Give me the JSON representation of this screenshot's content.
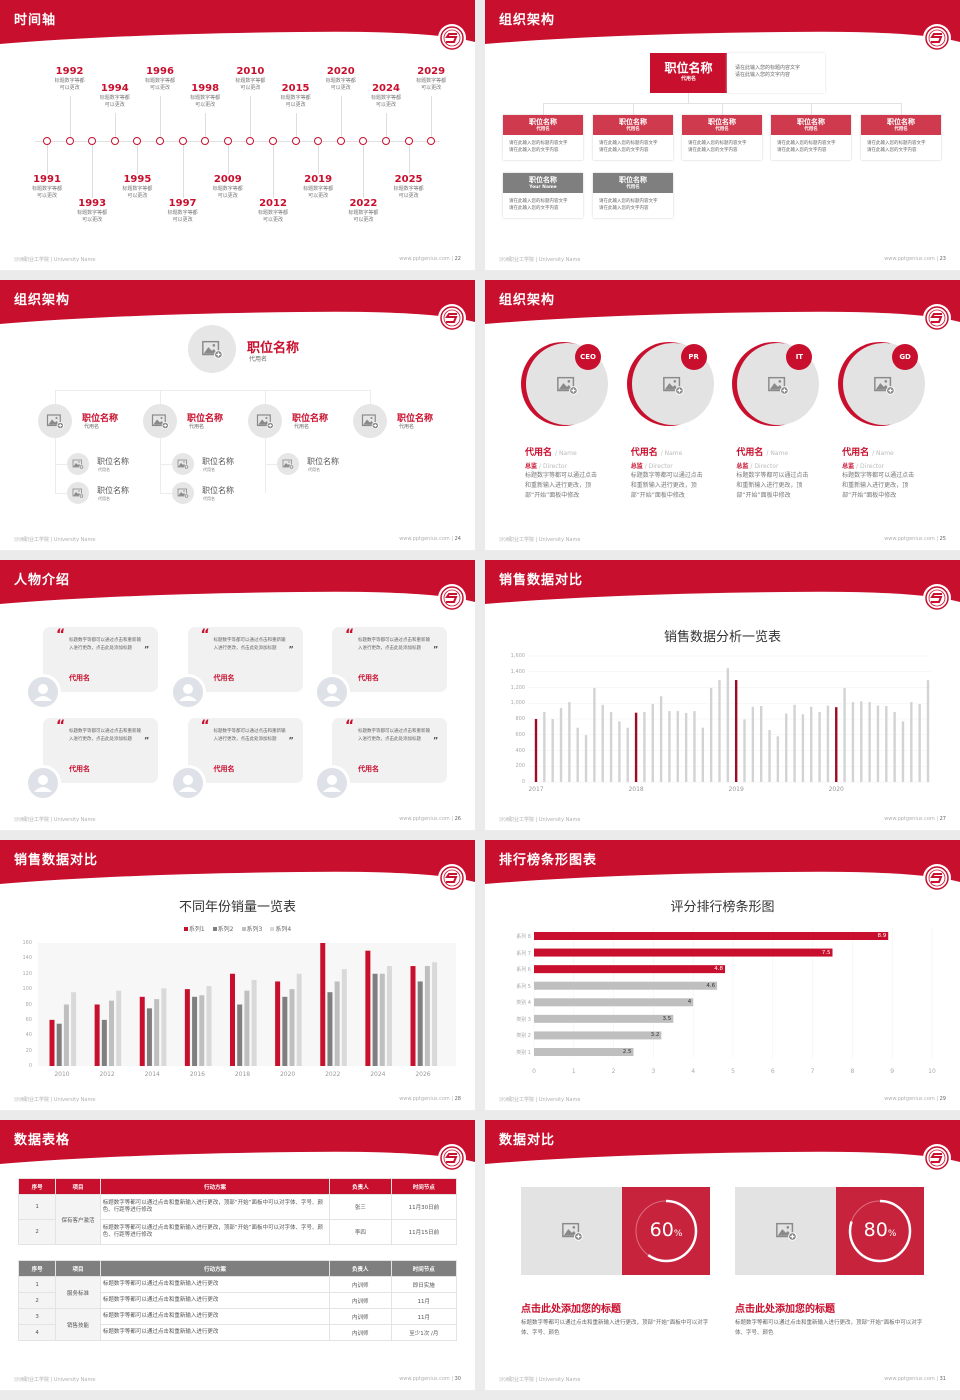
{
  "footer": {
    "school": "沙洲职业工学院 | University Name",
    "site": "www.pptgenius.com"
  },
  "colors": {
    "accent": "#c8102e",
    "dark_gray": "#7f7f7f",
    "mid_gray": "#bfbfbf",
    "light_gray": "#d9d9d9",
    "page_bg": "#ebebeb"
  },
  "slides": [
    {
      "title": "时间轴",
      "page": "22",
      "timeline": [
        {
          "year": "1991",
          "desc": [
            "标题数字等都",
            "可以更改"
          ]
        },
        {
          "year": "1992",
          "desc": [
            "标题数字等都",
            "可以更改"
          ]
        },
        {
          "year": "1993",
          "desc": [
            "标题数字等都",
            "可以更改"
          ]
        },
        {
          "year": "1994",
          "desc": [
            "标题数字等都",
            "可以更改"
          ]
        },
        {
          "year": "1995",
          "desc": [
            "标题数字等都",
            "可以更改"
          ]
        },
        {
          "year": "1996",
          "desc": [
            "标题数字等都",
            "可以更改"
          ]
        },
        {
          "year": "1997",
          "desc": [
            "标题数字等都",
            "可以更改"
          ]
        },
        {
          "year": "1998",
          "desc": [
            "标题数字等都",
            "可以更改"
          ]
        },
        {
          "year": "2009",
          "desc": [
            "标题数字等都",
            "可以更改"
          ]
        },
        {
          "year": "2010",
          "desc": [
            "标题数字等都",
            "可以更改"
          ]
        },
        {
          "year": "2012",
          "desc": [
            "标题数字等都",
            "可以更改"
          ]
        },
        {
          "year": "2015",
          "desc": [
            "标题数字等都",
            "可以更改"
          ]
        },
        {
          "year": "2019",
          "desc": [
            "标题数字等都",
            "可以更改"
          ]
        },
        {
          "year": "2020",
          "desc": [
            "标题数字等都",
            "可以更改"
          ]
        },
        {
          "year": "2022",
          "desc": [
            "标题数字等都",
            "可以更改"
          ]
        },
        {
          "year": "2024",
          "desc": [
            "标题数字等都",
            "可以更改"
          ]
        },
        {
          "year": "2025",
          "desc": [
            "标题数字等都",
            "可以更改"
          ]
        },
        {
          "year": "2029",
          "desc": [
            "标题数字等都",
            "可以更改"
          ]
        }
      ]
    },
    {
      "title": "组织架构",
      "page": "23",
      "top": {
        "title": "职位名称",
        "sub": "代用名",
        "lines": [
          "请在此输入您的标题内容文字",
          "请在此输入您的文字内容"
        ]
      },
      "boxes": [
        {
          "title": "职位名称",
          "sub": "代用名",
          "color": "red",
          "lines": [
            "请在此输入您的标题内容文字",
            "请在此输入您的文字内容"
          ]
        },
        {
          "title": "职位名称",
          "sub": "代用名",
          "color": "red",
          "lines": [
            "请在此输入您的标题内容文字",
            "请在此输入您的文字内容"
          ]
        },
        {
          "title": "职位名称",
          "sub": "代用名",
          "color": "red",
          "lines": [
            "请在此输入您的标题内容文字",
            "请在此输入您的文字内容"
          ]
        },
        {
          "title": "职位名称",
          "sub": "代用名",
          "color": "red",
          "lines": [
            "请在此输入您的标题内容文字",
            "请在此输入您的文字内容"
          ]
        },
        {
          "title": "职位名称",
          "sub": "代用名",
          "color": "red",
          "lines": [
            "请在此输入您的标题内容文字",
            "请在此输入您的文字内容"
          ]
        },
        {
          "title": "职位名称",
          "sub": "Your Name",
          "color": "gray",
          "lines": [
            "请在此输入您的标题内容文字",
            "请在此输入您的文字内容"
          ]
        },
        {
          "title": "职位名称",
          "sub": "代用名",
          "color": "gray",
          "lines": [
            "请在此输入您的标题内容文字",
            "请在此输入您的文字内容"
          ]
        }
      ]
    },
    {
      "title": "组织架构",
      "page": "24",
      "top": {
        "title": "职位名称",
        "sub": "代用名"
      },
      "heads": [
        {
          "title": "职位名称",
          "sub": "代用名",
          "children": [
            {
              "title": "职位名称",
              "sub": "代用名"
            },
            {
              "title": "职位名称",
              "sub": "代用名"
            }
          ]
        },
        {
          "title": "职位名称",
          "sub": "代用名",
          "children": [
            {
              "title": "职位名称",
              "sub": "代用名"
            },
            {
              "title": "职位名称",
              "sub": "代用名"
            }
          ]
        },
        {
          "title": "职位名称",
          "sub": "代用名",
          "children": [
            {
              "title": "职位名称",
              "sub": "代用名"
            }
          ]
        },
        {
          "title": "职位名称",
          "sub": "代用名",
          "children": []
        }
      ]
    },
    {
      "title": "组织架构",
      "page": "25",
      "members": [
        {
          "badge": "CEO",
          "name": "代用名",
          "name_en": "/ Name",
          "role": "总监",
          "role_en": "/  Director",
          "desc": "标题数字等都可以通过点击和重新输入进行更改，顶部“开始”面板中修改"
        },
        {
          "badge": "PR",
          "name": "代用名",
          "name_en": "/ Name",
          "role": "总监",
          "role_en": "/  Director",
          "desc": "标题数字等都可以通过点击和重新输入进行更改，顶部“开始”面板中修改"
        },
        {
          "badge": "IT",
          "name": "代用名",
          "name_en": "/ Name",
          "role": "总监",
          "role_en": "/  Director",
          "desc": "标题数字等都可以通过点击和重新输入进行更改，顶部“开始”面板中修改"
        },
        {
          "badge": "GD",
          "name": "代用名",
          "name_en": "/ Name",
          "role": "总监",
          "role_en": "/  Director",
          "desc": "标题数字等都可以通过点击和重新输入进行更改，顶部“开始”面板中修改"
        }
      ]
    },
    {
      "title": "人物介绍",
      "page": "26",
      "quotes": [
        {
          "text": "标题数字等都可以通过点击和重新输入进行更改，点击此处添加标题",
          "name": "代用名"
        },
        {
          "text": "标题数字等都可以通过点击和重新输入进行更改，点击此处添加标题",
          "name": "代用名"
        },
        {
          "text": "标题数字等都可以通过点击和重新输入进行更改，点击此处添加标题",
          "name": "代用名"
        },
        {
          "text": "标题数字等都可以通过点击和重新输入进行更改，点击此处添加标题",
          "name": "代用名"
        },
        {
          "text": "标题数字等都可以通过点击和重新输入进行更改，点击此处添加标题",
          "name": "代用名"
        },
        {
          "text": "标题数字等都可以通过点击和重新输入进行更改，点击此处添加标题",
          "name": "代用名"
        }
      ]
    },
    {
      "title": "销售数据对比",
      "page": "27"
    },
    {
      "title": "销售数据对比",
      "page": "28"
    },
    {
      "title": "排行榜条形图表",
      "page": "29"
    },
    {
      "title": "数据表格",
      "page": "30",
      "table1": {
        "headers": [
          "序号",
          "项目",
          "行动方案",
          "负责人",
          "时间节点"
        ],
        "group": "保有客户激活",
        "rows": [
          [
            "1",
            "标题数字等都可以通过点击和重新输入进行更改，顶部“开始”面板中可以对字体、字号、颜色、行距等进行修改",
            "张三",
            "11月30日前"
          ],
          [
            "2",
            "标题数字等都可以通过点击和重新输入进行更改，顶部“开始”面板中可以对字体、字号、颜色、行距等进行修改",
            "李四",
            "11月15日前"
          ]
        ]
      },
      "table2": {
        "headers": [
          "序号",
          "项目",
          "行动方案",
          "负责人",
          "时间节点"
        ],
        "groups": [
          "服务标准",
          "销售技能"
        ],
        "rows": [
          [
            "1",
            "标题数字等都可以通过点击和重新输入进行更改",
            "内训师",
            "即日实施"
          ],
          [
            "2",
            "标题数字等都可以通过点击和重新输入进行更改",
            "内训师",
            "11月"
          ],
          [
            "3",
            "标题数字等都可以通过点击和重新输入进行更改",
            "内训师",
            "11月"
          ],
          [
            "4",
            "标题数字等都可以通过点击和重新输入进行更改",
            "内训师",
            "至少1次 /月"
          ]
        ]
      }
    },
    {
      "title": "数据对比",
      "page": "31",
      "cards": [
        {
          "percent": 60,
          "value": "60",
          "unit": "%",
          "heading": "点击此处添加您的标题",
          "desc": "标题数字等都可以通过点击和重新输入进行更改，顶部“开始”面板中可以对字体、字号、颜色"
        },
        {
          "percent": 80,
          "value": "80",
          "unit": "%",
          "heading": "点击此处添加您的标题",
          "desc": "标题数字等都可以通过点击和重新输入进行更改，顶部“开始”面板中可以对字体、字号、颜色"
        }
      ]
    }
  ],
  "chart_data": [
    {
      "type": "bar",
      "title": "销售数据分析一览表",
      "x_tick_labels": [
        "2017",
        "2018",
        "2019",
        "2020"
      ],
      "ylim": [
        0,
        1600
      ],
      "y_ticks": [
        "0",
        "200",
        "400",
        "600",
        "800",
        "1,000",
        "1,200",
        "1,400",
        "1,600"
      ],
      "highlight_every": 12,
      "grid": true,
      "values": [
        800,
        890,
        800,
        940,
        1015,
        690,
        595,
        1195,
        980,
        890,
        770,
        690,
        880,
        890,
        990,
        1090,
        900,
        900,
        875,
        900,
        690,
        1195,
        1295,
        1445,
        1295,
        795,
        955,
        965,
        660,
        580,
        870,
        980,
        860,
        955,
        890,
        970,
        950,
        1195,
        1015,
        1025,
        1015,
        970,
        965,
        890,
        770,
        1015,
        990,
        1295
      ]
    },
    {
      "type": "bar",
      "title": "不同年份销量一览表",
      "legend": "top",
      "categories": [
        "2010",
        "2012",
        "2014",
        "2016",
        "2018",
        "2020",
        "2022",
        "2024",
        "2026"
      ],
      "ylim": [
        0,
        160
      ],
      "y_ticks": [
        "0",
        "20",
        "40",
        "60",
        "80",
        "100",
        "120",
        "140",
        "160"
      ],
      "series": [
        {
          "name": "系列1",
          "color": "#c8102e",
          "values": [
            60,
            80,
            90,
            100,
            120,
            110,
            160,
            150,
            130
          ]
        },
        {
          "name": "系列2",
          "color": "#7f7f7f",
          "values": [
            55,
            60,
            75,
            90,
            80,
            90,
            96,
            120,
            110
          ]
        },
        {
          "name": "系列3",
          "color": "#bfbfbf",
          "values": [
            80,
            85,
            87,
            92,
            98,
            100,
            110,
            120,
            130
          ]
        },
        {
          "name": "系列4",
          "color": "#d9d9d9",
          "values": [
            96,
            98,
            101,
            104,
            112,
            120,
            126,
            130,
            135
          ]
        }
      ]
    },
    {
      "type": "bar",
      "orientation": "horizontal",
      "title": "评分排行榜条形图",
      "categories": [
        "类别 1",
        "类别 2",
        "类别 3",
        "类别 4",
        "系列 5",
        "系列 6",
        "系列 7",
        "系列 8"
      ],
      "values": [
        2.5,
        3.2,
        3.5,
        4,
        4.6,
        4.8,
        7.5,
        8.9
      ],
      "labels": [
        "2.5",
        "3.2",
        "3.5",
        "4",
        "4.6",
        "4.8",
        "7.5",
        "8.9"
      ],
      "highlight_top": 3,
      "xlim": [
        0,
        10
      ],
      "x_ticks": [
        "0",
        "1",
        "2",
        "3",
        "4",
        "5",
        "6",
        "7",
        "8",
        "9",
        "10"
      ]
    }
  ]
}
